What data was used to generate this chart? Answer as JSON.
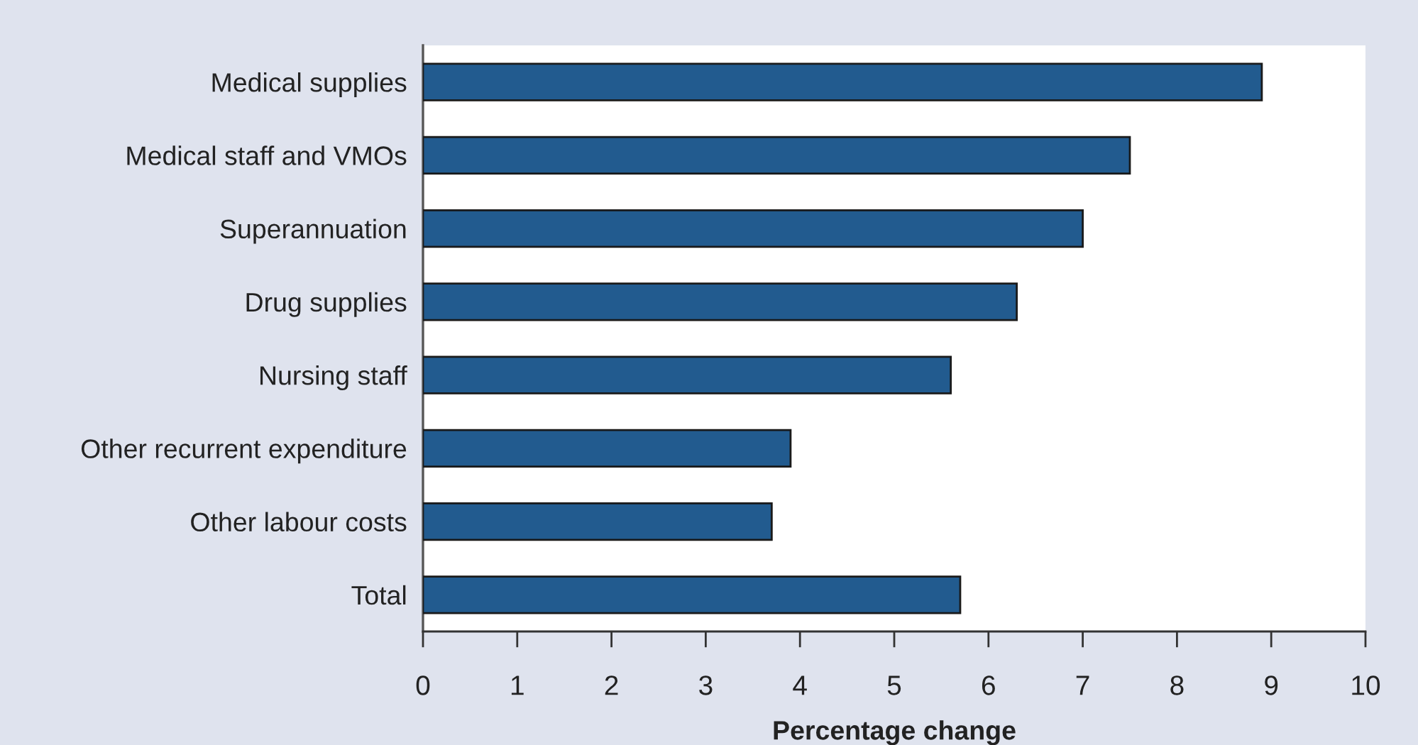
{
  "chart_data": {
    "type": "bar",
    "orientation": "horizontal",
    "categories": [
      "Medical supplies",
      "Medical staff and VMOs",
      "Superannuation",
      "Drug supplies",
      "Nursing staff",
      "Other recurrent expenditure",
      "Other labour costs",
      "Total"
    ],
    "values": [
      8.9,
      7.5,
      7.0,
      6.3,
      5.6,
      3.9,
      3.7,
      5.7
    ],
    "color": "#225b8f",
    "xlim": [
      0,
      10
    ],
    "xticks": [
      0,
      1,
      2,
      3,
      4,
      5,
      6,
      7,
      8,
      9,
      10
    ],
    "xlabel": "Percentage change"
  }
}
